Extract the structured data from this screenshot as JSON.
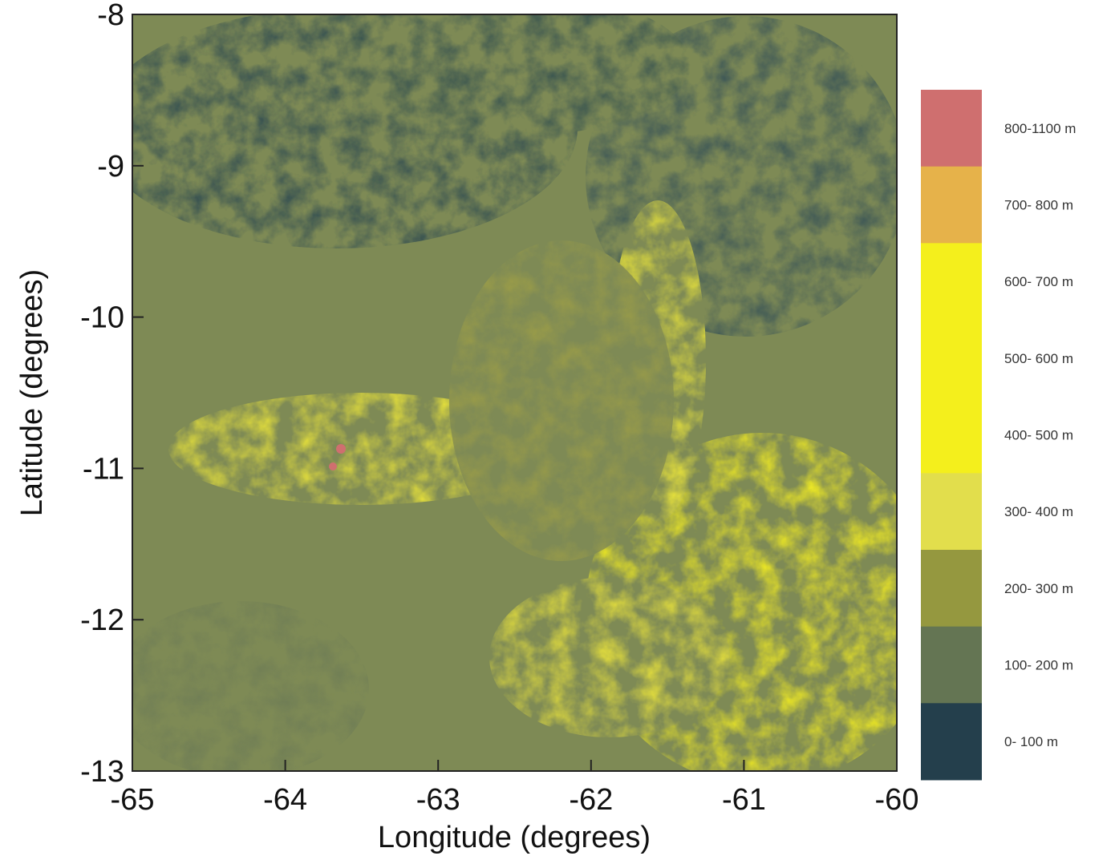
{
  "chart_data": {
    "type": "terrain-map",
    "x_label": "Longitude (degrees)",
    "y_label": "Latitude (degrees)",
    "xlim": [
      -65,
      -60
    ],
    "xticks": [
      -65,
      -64,
      -63,
      -62,
      -61,
      -60
    ],
    "ylim": [
      -13,
      -8
    ],
    "yticks": [
      -8,
      -9,
      -10,
      -11,
      -12,
      -13
    ],
    "legend": [
      {
        "label": "800-1100 m",
        "color": "#cf6f6f"
      },
      {
        "label": "700- 800 m",
        "color": "#e6b24a"
      },
      {
        "label": "600- 700 m",
        "color": "#f4ef1c"
      },
      {
        "label": "500- 600 m",
        "color": "#f4ef1c"
      },
      {
        "label": "400- 500 m",
        "color": "#f4ef1c"
      },
      {
        "label": "300- 400 m",
        "color": "#e2de4c"
      },
      {
        "label": "200- 300 m",
        "color": "#95983f"
      },
      {
        "label": "100- 200 m",
        "color": "#647553"
      },
      {
        "label": "0- 100 m",
        "color": "#243f4c"
      }
    ]
  }
}
